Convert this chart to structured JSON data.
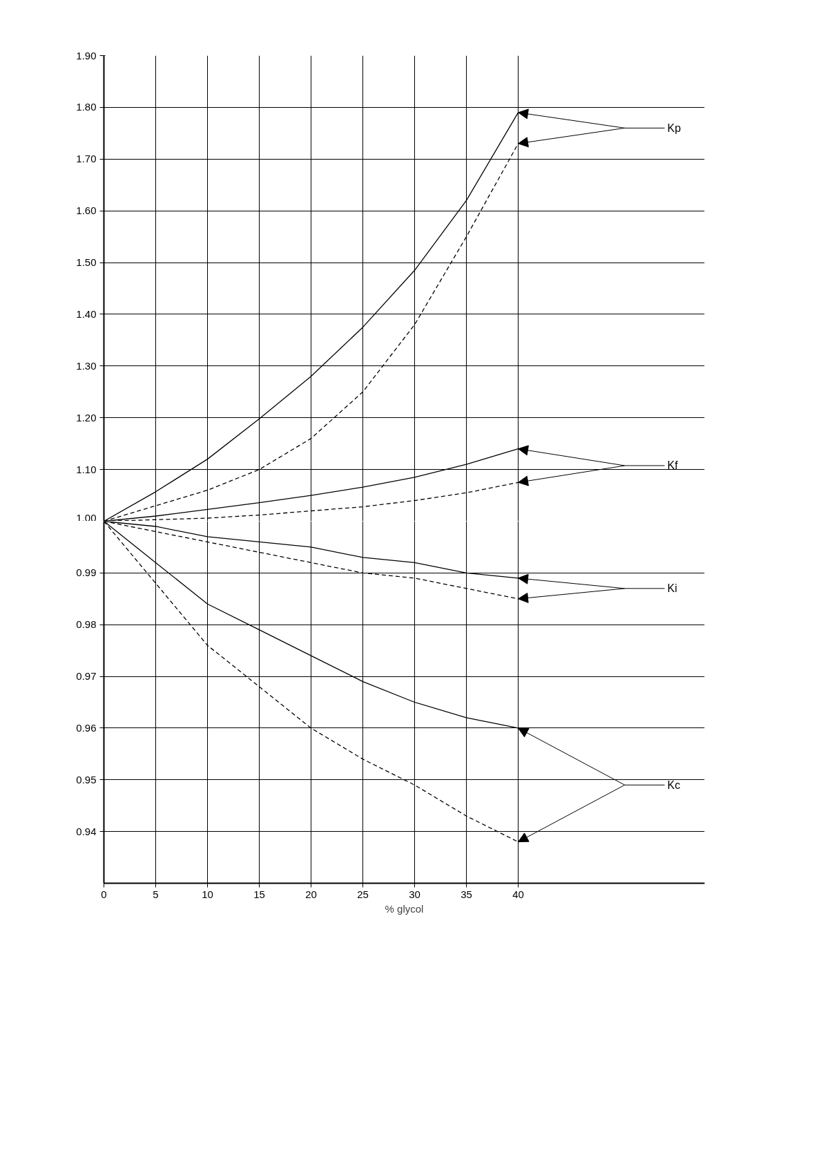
{
  "chart_data": [
    {
      "type": "line",
      "x": [
        0,
        5,
        10,
        15,
        20,
        25,
        30,
        35,
        40
      ],
      "xlim": [
        0,
        58
      ],
      "xticks": [
        0,
        5,
        10,
        15,
        20,
        25,
        30,
        35,
        40
      ],
      "ylim": [
        1.0,
        1.9
      ],
      "yticks": [
        {
          "value": 1.0,
          "label": "1.00"
        },
        {
          "value": 1.1,
          "label": "1.10"
        },
        {
          "value": 1.2,
          "label": "1.20"
        },
        {
          "value": 1.3,
          "label": "1.30"
        },
        {
          "value": 1.4,
          "label": "1.40"
        },
        {
          "value": 1.5,
          "label": "1.50"
        },
        {
          "value": 1.6,
          "label": "1.60"
        },
        {
          "value": 1.7,
          "label": "1.70"
        },
        {
          "value": 1.8,
          "label": "1.80"
        },
        {
          "value": 1.9,
          "label": "1.90"
        }
      ],
      "tick_labels": "y",
      "grid": true,
      "legend": "right",
      "series": [
        {
          "name": "Kp",
          "color": "#000000",
          "line_style": "solid",
          "values": [
            1.0,
            1.057,
            1.12,
            1.198,
            1.28,
            1.375,
            1.485,
            1.62,
            1.79
          ]
        },
        {
          "color": "#000000",
          "line_style": "dashed",
          "values": [
            1.0,
            1.03,
            1.06,
            1.1,
            1.16,
            1.25,
            1.38,
            1.55,
            1.73
          ]
        },
        {
          "name": "Kf",
          "color": "#000000",
          "line_style": "solid",
          "values": [
            1.0,
            1.01,
            1.023,
            1.036,
            1.05,
            1.066,
            1.085,
            1.11,
            1.14
          ]
        },
        {
          "color": "#000000",
          "line_style": "dashed",
          "values": [
            1.0,
            1.003,
            1.006,
            1.012,
            1.02,
            1.028,
            1.04,
            1.055,
            1.075
          ]
        }
      ]
    },
    {
      "type": "line",
      "x": [
        0,
        5,
        10,
        15,
        20,
        25,
        30,
        35,
        40
      ],
      "xlim": [
        0,
        58
      ],
      "xticks": [
        0,
        5,
        10,
        15,
        20,
        25,
        30,
        35,
        40
      ],
      "ylim": [
        0.93,
        1.0
      ],
      "yticks": [
        {
          "value": 0.94,
          "label": "0.94"
        },
        {
          "value": 0.95,
          "label": "0.95"
        },
        {
          "value": 0.96,
          "label": "0.96"
        },
        {
          "value": 0.97,
          "label": "0.97"
        },
        {
          "value": 0.98,
          "label": "0.98"
        },
        {
          "value": 0.99,
          "label": "0.99"
        }
      ],
      "xlabel": "% glycol",
      "grid": true,
      "legend": "right",
      "series": [
        {
          "name": "Ki",
          "color": "#000000",
          "line_style": "solid",
          "values": [
            1.0,
            0.999,
            0.997,
            0.996,
            0.995,
            0.993,
            0.992,
            0.99,
            0.989
          ]
        },
        {
          "color": "#000000",
          "line_style": "dashed",
          "values": [
            1.0,
            0.998,
            0.996,
            0.994,
            0.992,
            0.99,
            0.989,
            0.987,
            0.985
          ]
        },
        {
          "name": "Kc",
          "color": "#000000",
          "line_style": "solid",
          "values": [
            1.0,
            0.992,
            0.984,
            0.979,
            0.974,
            0.969,
            0.965,
            0.962,
            0.96
          ]
        },
        {
          "color": "#000000",
          "line_style": "dashed",
          "values": [
            1.0,
            0.988,
            0.976,
            0.968,
            0.96,
            0.954,
            0.949,
            0.943,
            0.938
          ]
        }
      ]
    }
  ]
}
